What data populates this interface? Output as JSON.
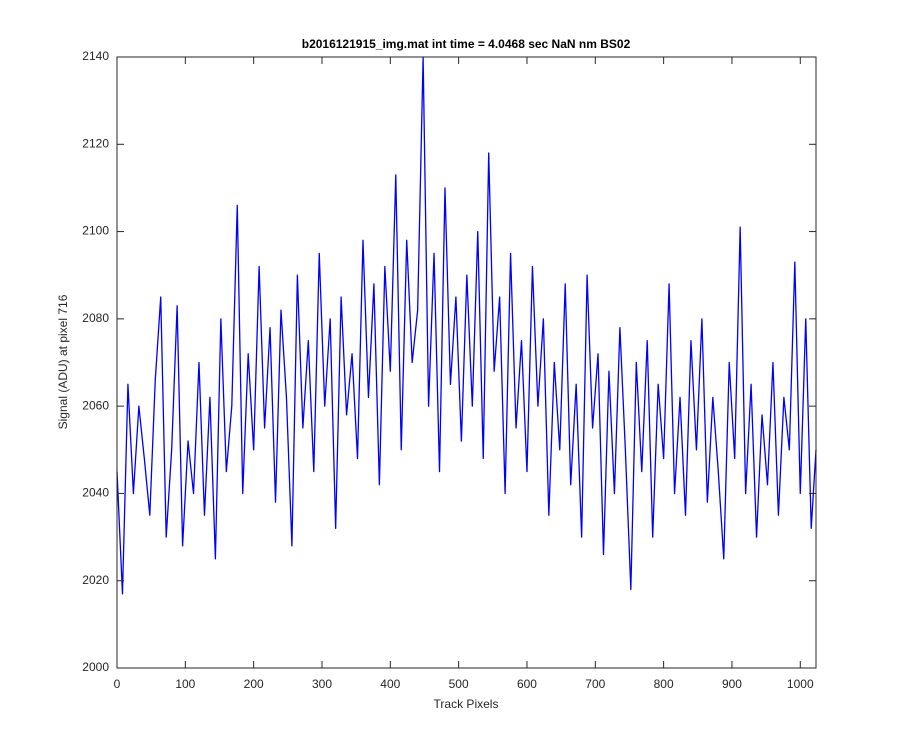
{
  "chart_data": {
    "type": "line",
    "title": "b2016121915_img.mat int time = 4.0468 sec  NaN nm BS02",
    "x_label": "Track Pixels",
    "y_label": "Signal (ADU) at pixel 716",
    "xlim": [
      0,
      1023
    ],
    "ylim": [
      2000,
      2140
    ],
    "xticks": [
      0,
      100,
      200,
      300,
      400,
      500,
      600,
      700,
      800,
      900,
      1000
    ],
    "yticks": [
      2000,
      2020,
      2040,
      2060,
      2080,
      2100,
      2120,
      2140
    ],
    "grid": false,
    "x": [
      0,
      8,
      16,
      24,
      32,
      40,
      48,
      56,
      64,
      72,
      80,
      88,
      96,
      104,
      112,
      120,
      128,
      136,
      144,
      152,
      160,
      168,
      176,
      184,
      192,
      200,
      208,
      216,
      224,
      232,
      240,
      248,
      256,
      264,
      272,
      280,
      288,
      296,
      304,
      312,
      320,
      328,
      336,
      344,
      352,
      360,
      368,
      376,
      384,
      392,
      400,
      408,
      416,
      424,
      432,
      440,
      448,
      456,
      464,
      472,
      480,
      488,
      496,
      504,
      512,
      520,
      528,
      536,
      544,
      552,
      560,
      568,
      576,
      584,
      592,
      600,
      608,
      616,
      624,
      632,
      640,
      648,
      656,
      664,
      672,
      680,
      688,
      696,
      704,
      712,
      720,
      728,
      736,
      744,
      752,
      760,
      768,
      776,
      784,
      792,
      800,
      808,
      816,
      824,
      832,
      840,
      848,
      856,
      864,
      872,
      880,
      888,
      896,
      904,
      912,
      920,
      928,
      936,
      944,
      952,
      960,
      968,
      976,
      984,
      992,
      1000,
      1008,
      1016,
      1023
    ],
    "series": [
      {
        "color": "#0000ff",
        "values": [
          2045,
          2017,
          2065,
          2040,
          2060,
          2048,
          2035,
          2066,
          2085,
          2030,
          2050,
          2083,
          2028,
          2052,
          2040,
          2070,
          2035,
          2062,
          2025,
          2080,
          2045,
          2060,
          2106,
          2040,
          2072,
          2050,
          2092,
          2055,
          2078,
          2038,
          2082,
          2062,
          2028,
          2090,
          2055,
          2075,
          2045,
          2095,
          2060,
          2080,
          2032,
          2085,
          2058,
          2072,
          2048,
          2098,
          2062,
          2088,
          2042,
          2092,
          2068,
          2113,
          2050,
          2098,
          2070,
          2082,
          2140,
          2060,
          2095,
          2045,
          2110,
          2065,
          2085,
          2052,
          2090,
          2060,
          2100,
          2048,
          2118,
          2068,
          2085,
          2040,
          2095,
          2055,
          2075,
          2045,
          2092,
          2060,
          2080,
          2035,
          2070,
          2050,
          2088,
          2042,
          2065,
          2030,
          2090,
          2055,
          2072,
          2026,
          2068,
          2040,
          2078,
          2050,
          2018,
          2070,
          2045,
          2075,
          2030,
          2065,
          2048,
          2088,
          2040,
          2062,
          2035,
          2075,
          2050,
          2080,
          2038,
          2062,
          2045,
          2025,
          2070,
          2048,
          2101,
          2040,
          2065,
          2030,
          2058,
          2042,
          2070,
          2035,
          2062,
          2050,
          2093,
          2040,
          2080,
          2032,
          2050
        ]
      }
    ]
  }
}
